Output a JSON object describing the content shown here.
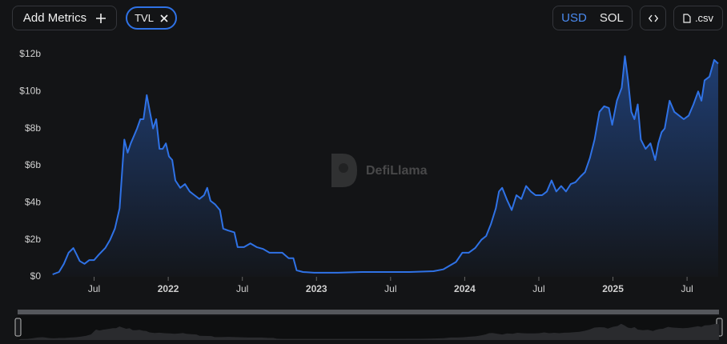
{
  "ui": {
    "add_metrics": "Add Metrics",
    "currencies": [
      "USD",
      "SOL"
    ],
    "active_currency": "USD",
    "csv": ".csv",
    "watermark": "DefiLlama"
  },
  "chart_data": {
    "type": "area",
    "series_name": "TVL",
    "color": "#2f72e6",
    "x": [
      2021.22,
      2021.263,
      2021.296,
      2021.328,
      2021.36,
      2021.382,
      2021.403,
      2021.435,
      2021.468,
      2021.5,
      2021.532,
      2021.575,
      2021.608,
      2021.64,
      2021.672,
      2021.694,
      2021.704,
      2021.726,
      2021.747,
      2021.769,
      2021.79,
      2021.812,
      2021.833,
      2021.855,
      2021.876,
      2021.898,
      2021.919,
      2021.941,
      2021.962,
      2021.984,
      2022.005,
      2022.027,
      2022.048,
      2022.081,
      2022.113,
      2022.145,
      2022.177,
      2022.21,
      2022.242,
      2022.263,
      2022.285,
      2022.317,
      2022.349,
      2022.371,
      2022.403,
      2022.446,
      2022.468,
      2022.511,
      2022.554,
      2022.597,
      2022.64,
      2022.683,
      2022.726,
      2022.769,
      2022.812,
      2022.844,
      2022.866,
      2022.909,
      2022.984,
      2023.145,
      2023.306,
      2023.468,
      2023.629,
      2023.79,
      2023.855,
      2023.898,
      2023.941,
      2023.984,
      2024.027,
      2024.07,
      2024.113,
      2024.145,
      2024.177,
      2024.21,
      2024.231,
      2024.253,
      2024.285,
      2024.317,
      2024.349,
      2024.382,
      2024.414,
      2024.446,
      2024.478,
      2024.522,
      2024.554,
      2024.586,
      2024.618,
      2024.651,
      2024.683,
      2024.715,
      2024.747,
      2024.78,
      2024.812,
      2024.844,
      2024.876,
      2024.909,
      2024.941,
      2024.973,
      2024.995,
      2025.027,
      2025.059,
      2025.081,
      2025.102,
      2025.124,
      2025.145,
      2025.167,
      2025.188,
      2025.22,
      2025.253,
      2025.285,
      2025.306,
      2025.328,
      2025.349,
      2025.382,
      2025.414,
      2025.446,
      2025.478,
      2025.511,
      2025.543,
      2025.575,
      2025.597,
      2025.618,
      2025.651,
      2025.683,
      2025.71
    ],
    "values": [
      0.13,
      0.26,
      0.7,
      1.3,
      1.55,
      1.2,
      0.85,
      0.7,
      0.9,
      0.9,
      1.2,
      1.55,
      2.0,
      2.6,
      3.7,
      6.3,
      7.4,
      6.7,
      7.2,
      7.6,
      8.0,
      8.5,
      8.5,
      9.8,
      8.9,
      8.0,
      8.5,
      6.9,
      6.9,
      7.2,
      6.5,
      6.3,
      5.2,
      4.8,
      5.0,
      4.6,
      4.4,
      4.2,
      4.4,
      4.8,
      4.1,
      3.9,
      3.6,
      2.6,
      2.5,
      2.4,
      1.6,
      1.6,
      1.8,
      1.6,
      1.5,
      1.3,
      1.3,
      1.3,
      1.0,
      1.0,
      0.35,
      0.26,
      0.22,
      0.22,
      0.26,
      0.26,
      0.26,
      0.3,
      0.4,
      0.6,
      0.8,
      1.3,
      1.3,
      1.55,
      2.0,
      2.2,
      2.85,
      3.7,
      4.6,
      4.8,
      4.15,
      3.6,
      4.4,
      4.2,
      4.9,
      4.6,
      4.4,
      4.4,
      4.6,
      5.2,
      4.6,
      4.9,
      4.6,
      5.0,
      5.1,
      5.4,
      5.65,
      6.4,
      7.4,
      8.9,
      9.2,
      9.1,
      8.2,
      9.5,
      10.2,
      11.9,
      10.6,
      8.9,
      8.5,
      9.3,
      7.4,
      6.9,
      7.2,
      6.3,
      7.2,
      7.8,
      8.0,
      9.5,
      8.9,
      8.7,
      8.5,
      8.7,
      9.3,
      10.0,
      9.5,
      10.6,
      10.8,
      11.7,
      11.5
    ],
    "xlim": [
      2021.2,
      2025.71
    ],
    "xticks": [
      {
        "value": 2021.5,
        "label": "Jul"
      },
      2022,
      {
        "value": 2022.5,
        "label": "Jul"
      },
      2023,
      {
        "value": 2023.5,
        "label": "Jul"
      },
      2024,
      {
        "value": 2024.5,
        "label": "Jul"
      },
      2025,
      {
        "value": 2025.5,
        "label": "Jul"
      }
    ],
    "ylim": [
      0,
      12.3
    ],
    "yticks": [
      {
        "value": 0,
        "label": "$0"
      },
      {
        "value": 2,
        "label": "$2b"
      },
      {
        "value": 4,
        "label": "$4b"
      },
      {
        "value": 6,
        "label": "$6b"
      },
      {
        "value": 8,
        "label": "$8b"
      },
      {
        "value": 10,
        "label": "$10b"
      },
      {
        "value": 12,
        "label": "$12b"
      }
    ],
    "grid": false
  }
}
